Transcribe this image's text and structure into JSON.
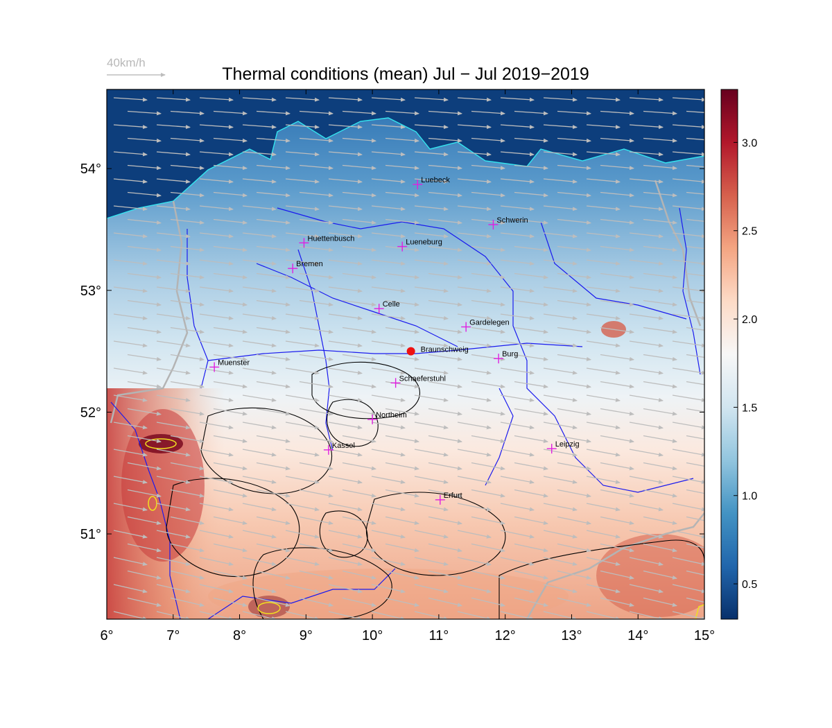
{
  "title": "Thermal conditions (mean) Jul − Jul  2019−2019",
  "wind_reference": {
    "label": "40km/h",
    "speed_kmh": 40
  },
  "map": {
    "lon_range": [
      6,
      15
    ],
    "lat_range": [
      50.3,
      54.65
    ],
    "x_ticks": [
      "6°",
      "7°",
      "8°",
      "9°",
      "10°",
      "11°",
      "12°",
      "13°",
      "14°",
      "15°"
    ],
    "y_ticks": [
      "51°",
      "52°",
      "53°",
      "54°"
    ],
    "y_tick_values": [
      51,
      52,
      53,
      54
    ],
    "colors": {
      "river": "#1a1aee",
      "coast": "#33e6f0",
      "border": "#b4b4b4",
      "contour": "#000000",
      "high_contour": "#f0e020",
      "wind": "#bdbdbd",
      "city_marker": "#e020e0",
      "reference_point": "#ee1111"
    },
    "cities": [
      {
        "name": "Luebeck",
        "lon": 10.68,
        "lat": 53.87
      },
      {
        "name": "Schwerin",
        "lon": 11.82,
        "lat": 53.54
      },
      {
        "name": "Huettenbusch",
        "lon": 8.97,
        "lat": 53.39
      },
      {
        "name": "Lueneburg",
        "lon": 10.45,
        "lat": 53.36
      },
      {
        "name": "Bremen",
        "lon": 8.8,
        "lat": 53.18
      },
      {
        "name": "Celle",
        "lon": 10.1,
        "lat": 52.85
      },
      {
        "name": "Gardelegen",
        "lon": 11.41,
        "lat": 52.7
      },
      {
        "name": "Burg",
        "lon": 11.9,
        "lat": 52.44
      },
      {
        "name": "Muenster",
        "lon": 7.62,
        "lat": 52.37
      },
      {
        "name": "Schaeferstuhl",
        "lon": 10.35,
        "lat": 52.24
      },
      {
        "name": "Northeim",
        "lon": 10.0,
        "lat": 51.94
      },
      {
        "name": "Kassel",
        "lon": 9.34,
        "lat": 51.69
      },
      {
        "name": "Leipzig",
        "lon": 12.7,
        "lat": 51.7
      },
      {
        "name": "Erfurt",
        "lon": 11.02,
        "lat": 51.28
      }
    ],
    "reference_point": {
      "name": "Braunschweig",
      "lon": 10.58,
      "lat": 52.5
    }
  },
  "colorbar": {
    "range": [
      0.3,
      3.3
    ],
    "ticks": [
      "0.5",
      "1.0",
      "1.5",
      "2.0",
      "2.5",
      "3.0"
    ],
    "tick_values": [
      0.5,
      1.0,
      1.5,
      2.0,
      2.5,
      3.0
    ],
    "stops": [
      "#08306b",
      "#2166ac",
      "#4393c3",
      "#92c5de",
      "#d1e5f0",
      "#f7f7f7",
      "#fddbc7",
      "#f4a582",
      "#d6604d",
      "#b2182b",
      "#67001f"
    ]
  }
}
